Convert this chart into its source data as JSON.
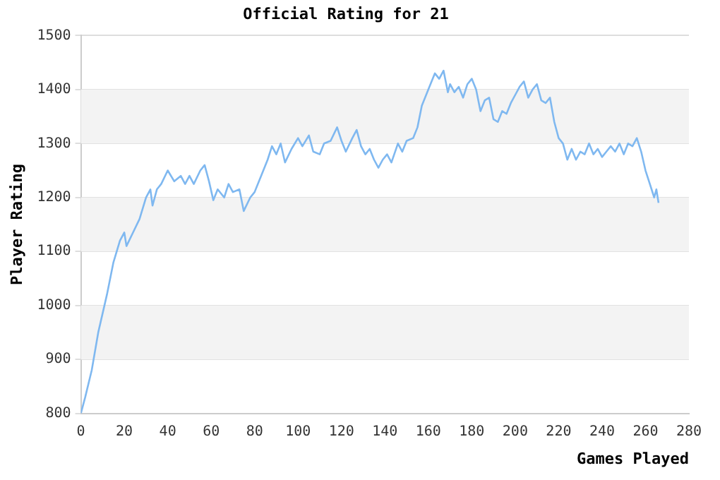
{
  "chart_data": {
    "type": "line",
    "title": "Official Rating for 21",
    "xlabel": "Games Played",
    "ylabel": "Player Rating",
    "x": [
      0,
      2,
      5,
      8,
      12,
      15,
      18,
      20,
      21,
      24,
      27,
      30,
      32,
      33,
      35,
      37,
      40,
      43,
      46,
      48,
      50,
      52,
      55,
      57,
      59,
      61,
      63,
      66,
      68,
      70,
      73,
      75,
      78,
      80,
      83,
      86,
      88,
      90,
      92,
      94,
      97,
      100,
      102,
      105,
      107,
      110,
      112,
      115,
      118,
      120,
      122,
      125,
      127,
      129,
      131,
      133,
      135,
      137,
      139,
      141,
      143,
      146,
      148,
      150,
      153,
      155,
      157,
      160,
      163,
      165,
      167,
      169,
      170,
      172,
      174,
      176,
      178,
      180,
      182,
      184,
      186,
      188,
      190,
      192,
      194,
      196,
      198,
      200,
      202,
      204,
      206,
      208,
      210,
      212,
      214,
      216,
      218,
      220,
      222,
      224,
      226,
      228,
      230,
      232,
      234,
      236,
      238,
      240,
      242,
      244,
      246,
      248,
      250,
      252,
      254,
      256,
      258,
      260,
      262,
      264,
      265,
      266
    ],
    "series": [
      {
        "color": "#7fb8f0",
        "values": [
          800,
          830,
          880,
          950,
          1020,
          1080,
          1120,
          1135,
          1110,
          1135,
          1160,
          1200,
          1215,
          1185,
          1215,
          1225,
          1250,
          1230,
          1240,
          1225,
          1240,
          1225,
          1250,
          1260,
          1230,
          1195,
          1215,
          1200,
          1225,
          1210,
          1215,
          1175,
          1200,
          1210,
          1240,
          1270,
          1295,
          1280,
          1300,
          1265,
          1290,
          1310,
          1295,
          1315,
          1285,
          1280,
          1300,
          1305,
          1330,
          1305,
          1285,
          1310,
          1325,
          1295,
          1280,
          1290,
          1270,
          1255,
          1270,
          1280,
          1265,
          1300,
          1285,
          1305,
          1310,
          1330,
          1370,
          1400,
          1430,
          1420,
          1435,
          1395,
          1410,
          1395,
          1405,
          1385,
          1410,
          1420,
          1400,
          1360,
          1380,
          1385,
          1345,
          1340,
          1360,
          1355,
          1375,
          1390,
          1405,
          1415,
          1385,
          1400,
          1410,
          1380,
          1375,
          1385,
          1340,
          1310,
          1300,
          1270,
          1290,
          1270,
          1285,
          1280,
          1300,
          1280,
          1290,
          1275,
          1285,
          1295,
          1285,
          1300,
          1280,
          1300,
          1295,
          1310,
          1285,
          1250,
          1225,
          1200,
          1215,
          1190
        ]
      }
    ],
    "xlim": [
      0,
      280
    ],
    "xticks": [
      0,
      20,
      40,
      60,
      80,
      100,
      120,
      140,
      160,
      180,
      200,
      220,
      240,
      260,
      280
    ],
    "ylim": [
      800,
      1500
    ],
    "yticks": [
      800,
      900,
      1000,
      1100,
      1200,
      1300,
      1400,
      1500
    ],
    "grid": "y",
    "legend": false,
    "marker": "none",
    "line_style": "solid"
  }
}
